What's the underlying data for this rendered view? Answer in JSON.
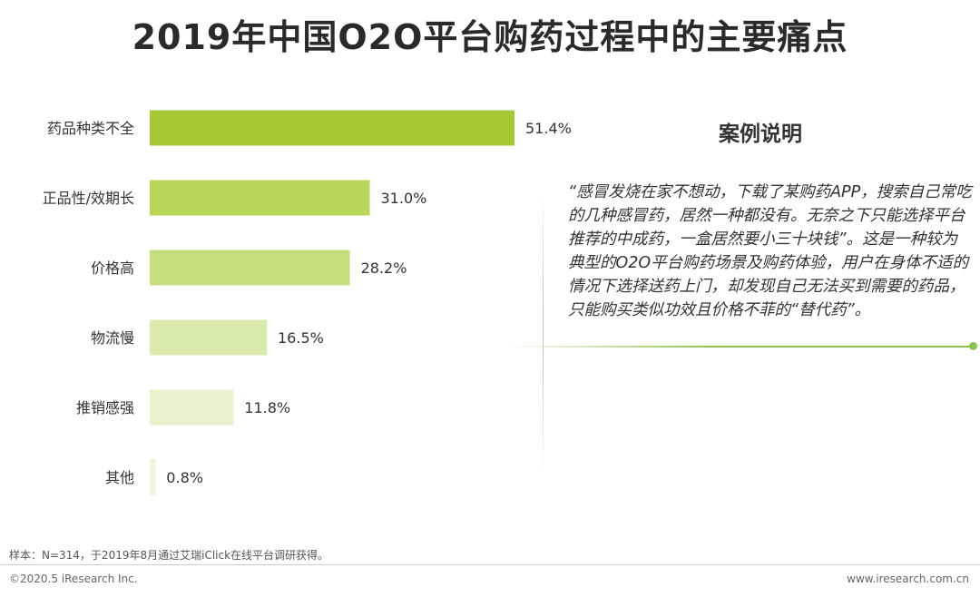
{
  "title": "2019年中国O2O平台购药过程中的主要痛点",
  "chart_data": {
    "type": "bar",
    "orientation": "horizontal",
    "title": "2019年中国O2O平台购药过程中的主要痛点",
    "unit": "%",
    "xlim": [
      0,
      51.4
    ],
    "categories": [
      "药品种类不全",
      "正品性/效期长",
      "价格高",
      "物流慢",
      "推销感强",
      "其他"
    ],
    "values": [
      51.4,
      31.0,
      28.2,
      16.5,
      11.8,
      0.8
    ],
    "labels": [
      "51.4%",
      "31.0%",
      "28.2%",
      "16.5%",
      "11.8%",
      "0.8%"
    ],
    "colors": [
      "#a6c834",
      "#b7d65a",
      "#c5df7e",
      "#d9ebaa",
      "#e8f3cd",
      "#eef6d9"
    ],
    "grid": false,
    "legend": "none"
  },
  "case": {
    "title": "案例说明",
    "quote": "“感冒发烧在家不想动，下载了某购药APP，搜索自己常吃的几种感冒药，居然一种都没有。无奈之下只能选择平台推荐的中成药，一盒居然要小三十块钱”。这是一种较为典型的O2O平台购药场景及购药体验，用户在身体不适的情况下选择送药上门，却发现自己无法买到需要的药品，只能购买类似功效且价格不菲的“替代药”。"
  },
  "footer": {
    "note": "样本：N=314，于2019年8月通过艾瑞iClick在线平台调研获得。",
    "copyright": "©2020.5 iResearch Inc.",
    "website": "www.iresearch.com.cn"
  }
}
